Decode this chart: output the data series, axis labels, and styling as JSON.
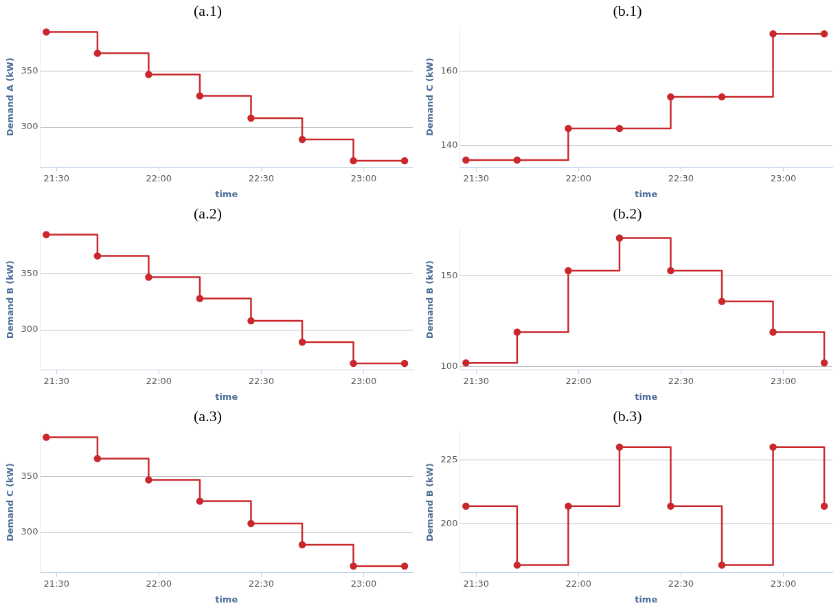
{
  "chart_data": [
    {
      "type": "step",
      "title": "(a.1)",
      "xlabel": "time",
      "ylabel": "Demand A (kW)",
      "x": [
        21.45,
        21.7,
        21.95,
        22.2,
        22.45,
        22.7,
        22.95,
        23.2
      ],
      "series": [
        {
          "color": "#c9282d",
          "values": [
            385,
            366,
            347,
            328,
            308,
            289,
            270,
            270
          ]
        }
      ],
      "xlim": [
        21.42,
        23.24
      ],
      "xticks": [
        {
          "value": 21.5,
          "label": "21:30"
        },
        {
          "value": 22,
          "label": "22:00"
        },
        {
          "value": 22.5,
          "label": "22:30"
        },
        {
          "value": 23,
          "label": "23:00"
        }
      ],
      "ylim": [
        264,
        390
      ],
      "yticks": [
        300,
        350
      ],
      "grid": "y",
      "marker": "circle"
    },
    {
      "type": "step",
      "title": "(b.1)",
      "xlabel": "time",
      "ylabel": "Demand C (kW)",
      "x": [
        21.45,
        21.7,
        21.95,
        22.2,
        22.45,
        22.7,
        22.95,
        23.2
      ],
      "series": [
        {
          "color": "#c9282d",
          "values": [
            136,
            136,
            144.5,
            144.5,
            153,
            153,
            170,
            170
          ]
        }
      ],
      "xlim": [
        21.42,
        23.24
      ],
      "xticks": [
        {
          "value": 21.5,
          "label": "21:30"
        },
        {
          "value": 22,
          "label": "22:00"
        },
        {
          "value": 22.5,
          "label": "22:30"
        },
        {
          "value": 23,
          "label": "23:00"
        }
      ],
      "ylim": [
        134,
        172
      ],
      "yticks": [
        140,
        160
      ],
      "grid": "y",
      "marker": "circle"
    },
    {
      "type": "step",
      "title": "(a.2)",
      "xlabel": "time",
      "ylabel": "Demand B (kW)",
      "x": [
        21.45,
        21.7,
        21.95,
        22.2,
        22.45,
        22.7,
        22.95,
        23.2
      ],
      "series": [
        {
          "color": "#c9282d",
          "values": [
            385,
            366,
            347,
            328,
            308,
            289,
            270,
            270
          ]
        }
      ],
      "xlim": [
        21.42,
        23.24
      ],
      "xticks": [
        {
          "value": 21.5,
          "label": "21:30"
        },
        {
          "value": 22,
          "label": "22:00"
        },
        {
          "value": 22.5,
          "label": "22:30"
        },
        {
          "value": 23,
          "label": "23:00"
        }
      ],
      "ylim": [
        264,
        390
      ],
      "yticks": [
        300,
        350
      ],
      "grid": "y",
      "marker": "circle"
    },
    {
      "type": "step",
      "title": "(b.2)",
      "xlabel": "time",
      "ylabel": "Demand B (kW)",
      "x": [
        21.45,
        21.7,
        21.95,
        22.2,
        22.45,
        22.7,
        22.95,
        23.2
      ],
      "series": [
        {
          "color": "#c9282d",
          "values": [
            102,
            119,
            153,
            171,
            153,
            136,
            119,
            102
          ]
        }
      ],
      "xlim": [
        21.42,
        23.24
      ],
      "xticks": [
        {
          "value": 21.5,
          "label": "21:30"
        },
        {
          "value": 22,
          "label": "22:00"
        },
        {
          "value": 22.5,
          "label": "22:30"
        },
        {
          "value": 23,
          "label": "23:00"
        }
      ],
      "ylim": [
        98,
        176
      ],
      "yticks": [
        100,
        150
      ],
      "grid": "y",
      "marker": "circle"
    },
    {
      "type": "step",
      "title": "(a.3)",
      "xlabel": "time",
      "ylabel": "Demand C (kW)",
      "x": [
        21.45,
        21.7,
        21.95,
        22.2,
        22.45,
        22.7,
        22.95,
        23.2
      ],
      "series": [
        {
          "color": "#c9282d",
          "values": [
            385,
            366,
            347,
            328,
            308,
            289,
            270,
            270
          ]
        }
      ],
      "xlim": [
        21.42,
        23.24
      ],
      "xticks": [
        {
          "value": 21.5,
          "label": "21:30"
        },
        {
          "value": 22,
          "label": "22:00"
        },
        {
          "value": 22.5,
          "label": "22:30"
        },
        {
          "value": 23,
          "label": "23:00"
        }
      ],
      "ylim": [
        264,
        390
      ],
      "yticks": [
        300,
        350
      ],
      "grid": "y",
      "marker": "circle"
    },
    {
      "type": "step",
      "title": "(b.3)",
      "xlabel": "time",
      "ylabel": "Demand B (kW)",
      "x": [
        21.45,
        21.7,
        21.95,
        22.2,
        22.45,
        22.7,
        22.95,
        23.2
      ],
      "series": [
        {
          "color": "#c9282d",
          "values": [
            207,
            184,
            207,
            230,
            207,
            184,
            230,
            207
          ]
        }
      ],
      "xlim": [
        21.42,
        23.24
      ],
      "xticks": [
        {
          "value": 21.5,
          "label": "21:30"
        },
        {
          "value": 22,
          "label": "22:00"
        },
        {
          "value": 22.5,
          "label": "22:30"
        },
        {
          "value": 23,
          "label": "23:00"
        }
      ],
      "ylim": [
        181,
        236
      ],
      "yticks": [
        200,
        225
      ],
      "grid": "y",
      "marker": "circle"
    }
  ]
}
